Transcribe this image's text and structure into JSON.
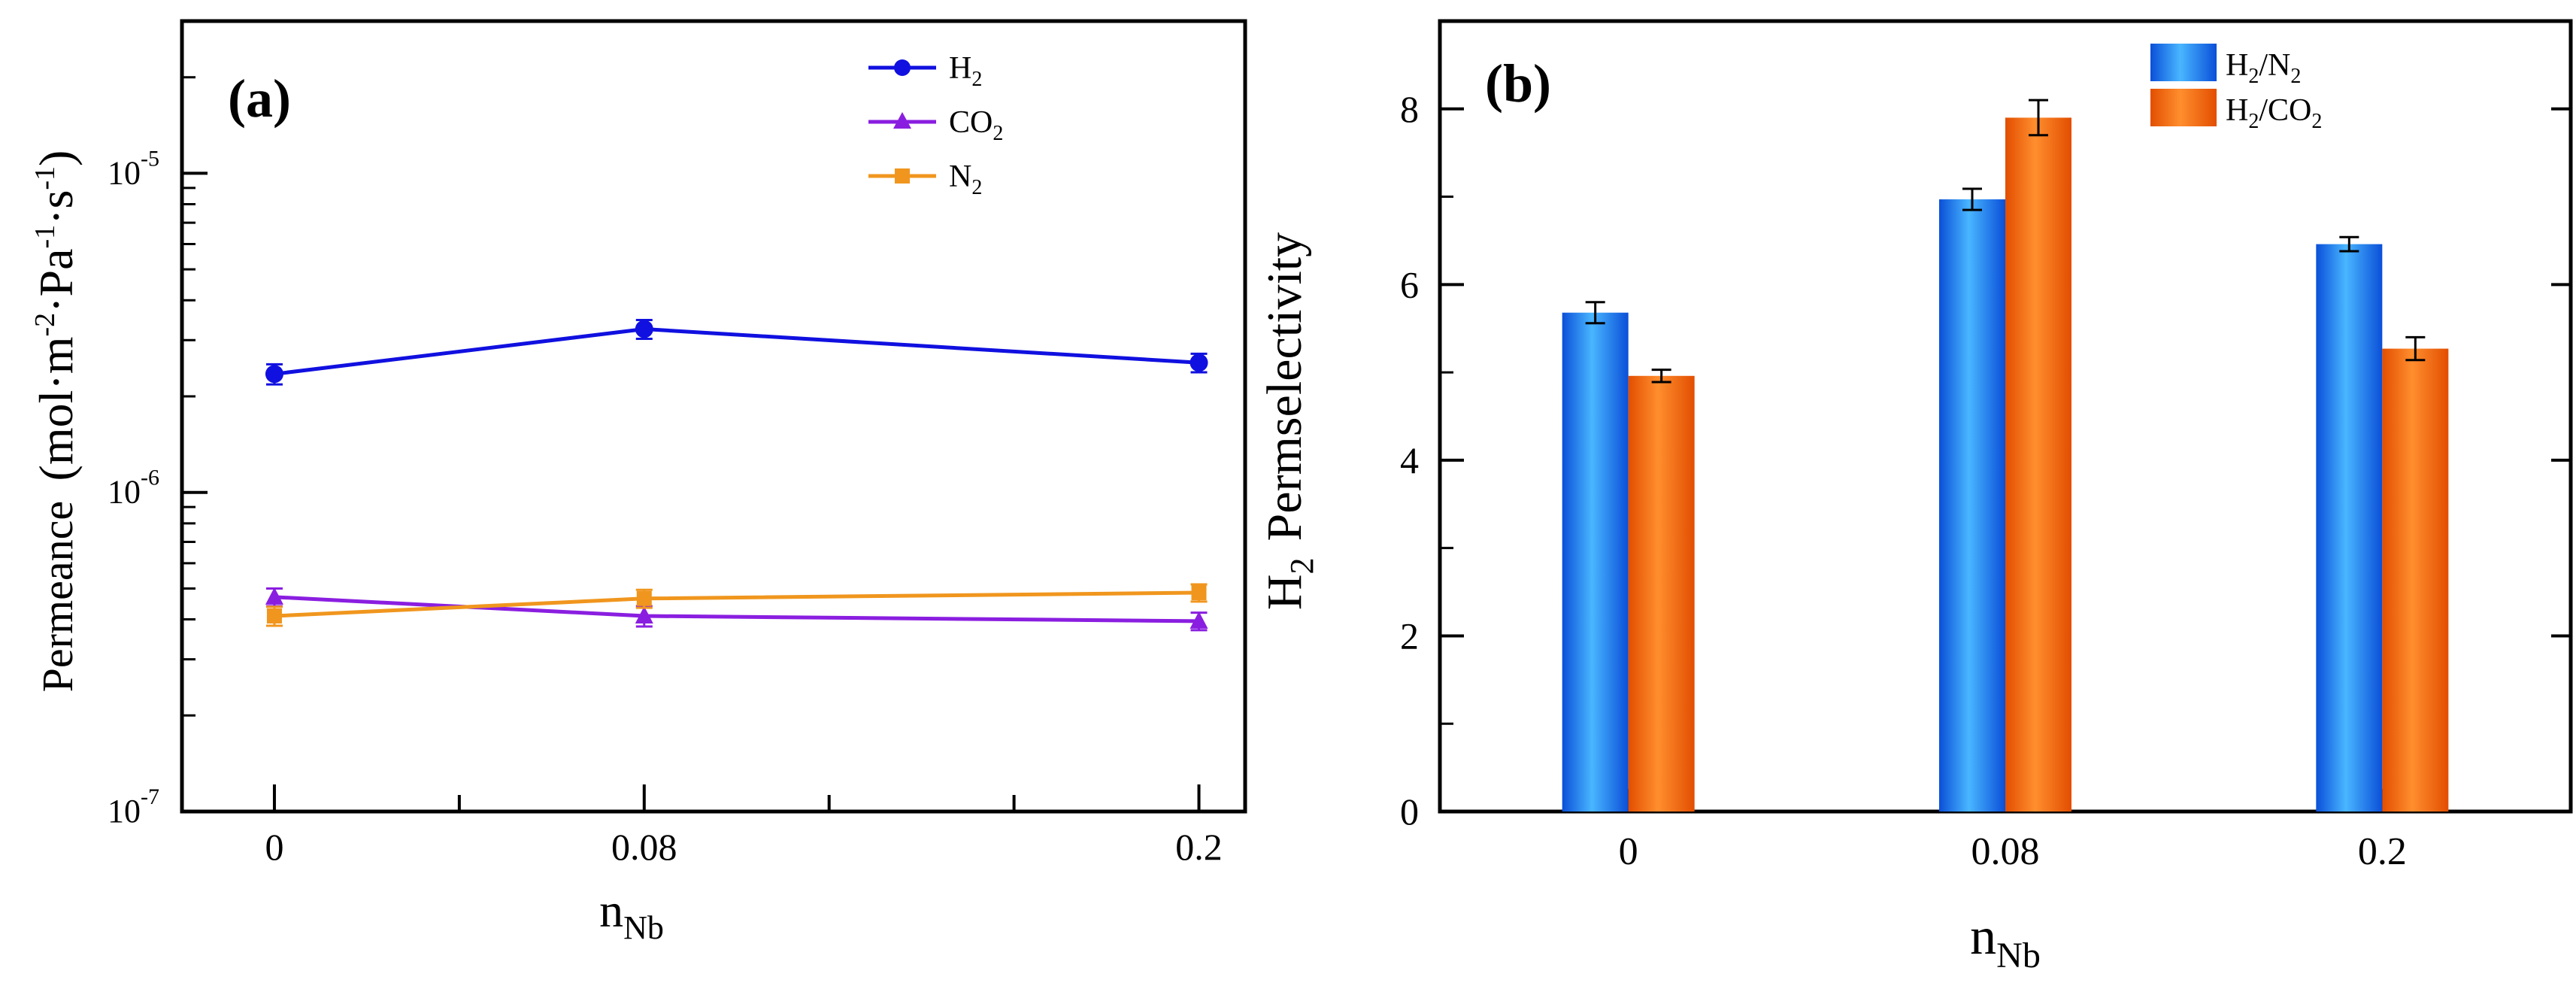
{
  "chart_data": [
    {
      "panel": "(a)",
      "type": "line",
      "yscale": "log",
      "categories": [
        "0",
        "0.08",
        "0.2"
      ],
      "x_positions": [
        0,
        0.08,
        0.2
      ],
      "xlim": [
        -0.02,
        0.21
      ],
      "ylim": [
        1e-07,
        3e-05
      ],
      "yticks": [
        {
          "value": 1e-07,
          "base": "10",
          "exp": "-7"
        },
        {
          "value": 1e-06,
          "base": "10",
          "exp": "-6"
        },
        {
          "value": 1e-05,
          "base": "10",
          "exp": "-5"
        }
      ],
      "xlabel": {
        "main": "n",
        "sub": "Nb"
      },
      "ylabel": {
        "main": "Permeance",
        "unit": "(mol·m-2·Pa-1·s-1)"
      },
      "series": [
        {
          "name": {
            "main": "H",
            "sub": "2"
          },
          "color": "#1010e0",
          "marker": "circle",
          "values": [
            2.35e-06,
            3.25e-06,
            2.55e-06
          ],
          "errors": [
            1.7e-07,
            2.2e-07,
            1.7e-07
          ]
        },
        {
          "name": {
            "main": "CO",
            "sub": "2"
          },
          "color": "#8a1ee0",
          "marker": "triangle",
          "values": [
            4.7e-07,
            4.1e-07,
            3.95e-07
          ],
          "errors": [
            3e-08,
            3e-08,
            2.5e-08
          ]
        },
        {
          "name": {
            "main": "N",
            "sub": "2"
          },
          "color": "#f0961e",
          "marker": "square",
          "values": [
            4.1e-07,
            4.65e-07,
            4.85e-07
          ],
          "errors": [
            2.8e-08,
            3e-08,
            3e-08
          ]
        }
      ]
    },
    {
      "panel": "(b)",
      "type": "bar",
      "categories": [
        "0",
        "0.08",
        "0.2"
      ],
      "ylim": [
        0,
        9
      ],
      "yticks": [
        0,
        2,
        4,
        6,
        8
      ],
      "xlabel": {
        "main": "n",
        "sub": "Nb"
      },
      "ylabel": {
        "main": "H",
        "sub": "2",
        "rest": "Permselectivity"
      },
      "series": [
        {
          "name": {
            "pre": "H",
            "s1": "2",
            "mid": "/N",
            "s2": "2"
          },
          "color": "#2a8cf0",
          "values": [
            5.68,
            6.97,
            6.46
          ],
          "errors": [
            0.12,
            0.12,
            0.08
          ]
        },
        {
          "name": {
            "pre": "H",
            "s1": "2",
            "mid": "/CO",
            "s2": "2"
          },
          "color": "#f76a0c",
          "values": [
            4.96,
            7.9,
            5.27
          ],
          "errors": [
            0.07,
            0.2,
            0.13
          ]
        }
      ]
    }
  ]
}
